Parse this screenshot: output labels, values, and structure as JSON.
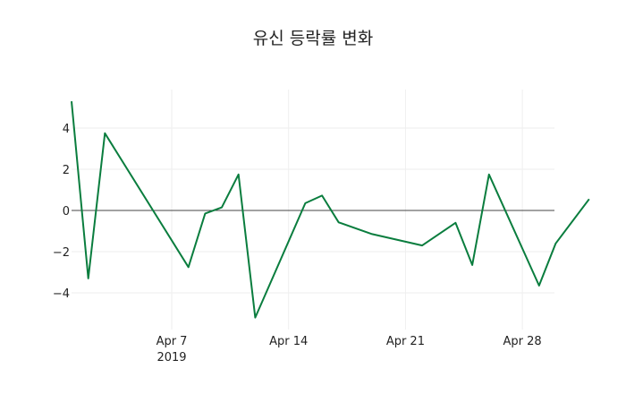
{
  "chart_data": {
    "type": "line",
    "title": "유신 등락률 변화",
    "xlabel": "",
    "ylabel": "",
    "x": [
      "2019-04-01",
      "2019-04-02",
      "2019-04-03",
      "2019-04-08",
      "2019-04-09",
      "2019-04-10",
      "2019-04-11",
      "2019-04-12",
      "2019-04-15",
      "2019-04-16",
      "2019-04-17",
      "2019-04-19",
      "2019-04-22",
      "2019-04-24",
      "2019-04-25",
      "2019-04-26",
      "2019-04-29",
      "2019-04-30",
      "2019-05-02"
    ],
    "series": [
      {
        "name": "등락률",
        "color": "#0a7d3e",
        "values": [
          5.3,
          -3.3,
          3.75,
          -2.75,
          -0.15,
          0.15,
          1.75,
          -5.2,
          0.35,
          0.72,
          -0.58,
          -1.15,
          -1.7,
          -0.6,
          -2.65,
          1.75,
          -3.65,
          -1.6,
          0.55
        ]
      }
    ],
    "x_ticks": [
      {
        "label": "Apr 7",
        "sub": "2019",
        "date": "2019-04-07"
      },
      {
        "label": "Apr 14",
        "sub": "",
        "date": "2019-04-14"
      },
      {
        "label": "Apr 21",
        "sub": "",
        "date": "2019-04-21"
      },
      {
        "label": "Apr 28",
        "sub": "",
        "date": "2019-04-28"
      }
    ],
    "y_ticks": [
      4,
      2,
      0,
      -2,
      -4
    ],
    "y_tick_labels": [
      "4",
      "2",
      "0",
      "−2",
      "−4"
    ],
    "ylim": [
      -5.7,
      5.8
    ],
    "xlim": [
      "2019-04-01",
      "2019-05-02"
    ],
    "grid": true,
    "zeroline": true,
    "legend": "none"
  }
}
